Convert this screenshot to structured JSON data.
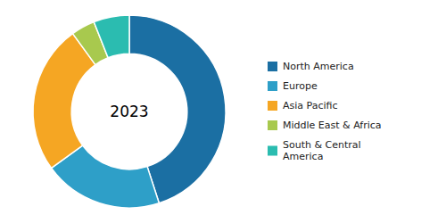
{
  "chart_data": {
    "type": "donut",
    "title": "2023",
    "categories": [
      "North America",
      "Europe",
      "Asia Pacific",
      "Middle East & Africa",
      "South & Central\nAmerica"
    ],
    "values": [
      45,
      20,
      25,
      4,
      6
    ],
    "colors": [
      "#1b6fa3",
      "#2e9fc8",
      "#f5a623",
      "#a8c94e",
      "#2bbcb0"
    ],
    "legend": "right"
  }
}
